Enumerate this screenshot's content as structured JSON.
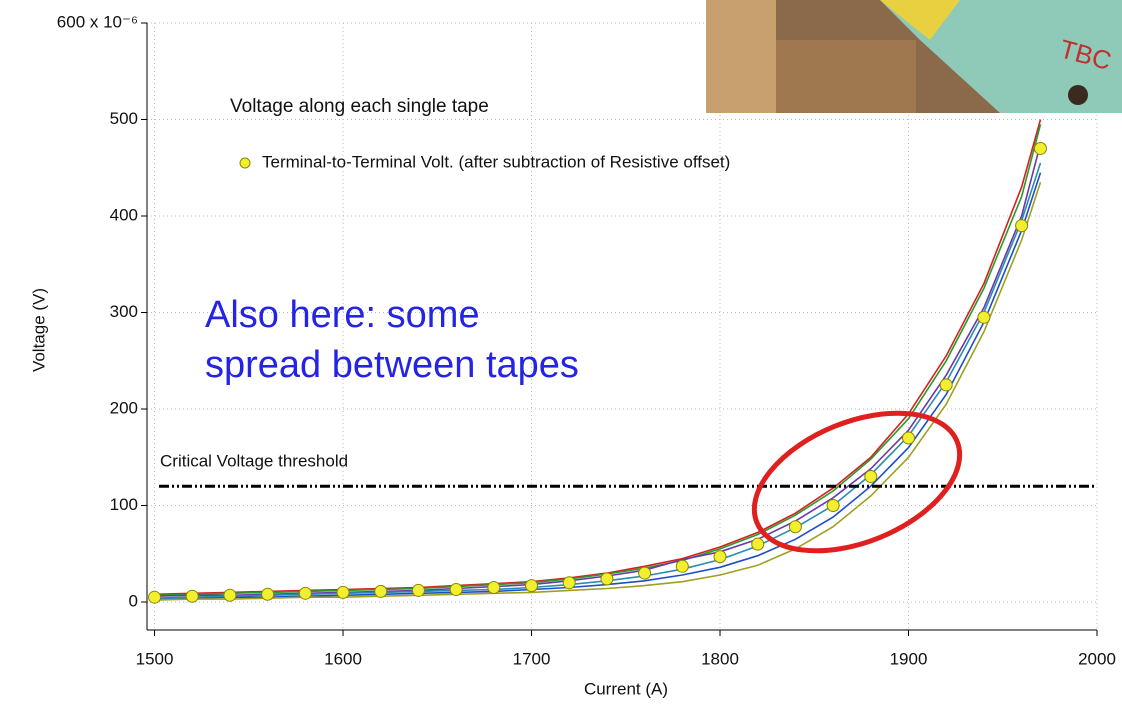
{
  "chart_data": {
    "type": "line",
    "x_label": "Current (A)",
    "y_label": "Voltage (V)",
    "legend_title": "Voltage along each single tape",
    "annotation_lines": [
      "Also here: some",
      "spread between tapes"
    ],
    "threshold": {
      "value": 120,
      "label": "Critical Voltage threshold"
    },
    "xlim": [
      1496,
      2000
    ],
    "xticks": [
      1500,
      1600,
      1700,
      1800,
      1900,
      2000
    ],
    "ylim": [
      -29,
      600
    ],
    "yticks": [
      0,
      100,
      200,
      300,
      400,
      500,
      {
        "value": 600,
        "label": "600 x 10⁻⁶"
      }
    ],
    "grid": true,
    "x": [
      1500,
      1520,
      1540,
      1560,
      1580,
      1600,
      1620,
      1640,
      1660,
      1680,
      1700,
      1720,
      1740,
      1760,
      1780,
      1800,
      1820,
      1840,
      1860,
      1880,
      1900,
      1920,
      1940,
      1960,
      1970
    ],
    "series": [
      {
        "color": "#d62020",
        "values": [
          8,
          9,
          10,
          11,
          12,
          13,
          14,
          15,
          17,
          19,
          21,
          25,
          30,
          37,
          45,
          57,
          72,
          92,
          118,
          150,
          195,
          255,
          330,
          430,
          500
        ]
      },
      {
        "color": "#2a9a2a",
        "values": [
          7,
          8,
          9,
          10,
          11,
          12,
          13,
          14,
          16,
          18,
          20,
          24,
          29,
          35,
          43,
          55,
          70,
          90,
          115,
          148,
          190,
          250,
          325,
          420,
          495
        ]
      },
      {
        "color": "#6a3aa8",
        "values": [
          6,
          7,
          7,
          8,
          9,
          10,
          11,
          12,
          14,
          16,
          18,
          22,
          27,
          33,
          44,
          52,
          65,
          84,
          108,
          138,
          178,
          235,
          305,
          400,
          475
        ]
      },
      {
        "color": "#1c4fc4",
        "values": [
          3,
          4,
          5,
          5,
          6,
          7,
          8,
          9,
          10,
          11,
          13,
          15,
          18,
          22,
          28,
          36,
          48,
          65,
          88,
          120,
          160,
          215,
          290,
          385,
          445
        ]
      },
      {
        "color": "#2a8cb0",
        "values": [
          4,
          5,
          6,
          7,
          8,
          9,
          10,
          11,
          12,
          13,
          15,
          18,
          22,
          27,
          34,
          44,
          58,
          77,
          100,
          132,
          172,
          228,
          300,
          395,
          455
        ]
      },
      {
        "color": "#a0a020",
        "values": [
          2,
          3,
          3,
          4,
          5,
          5,
          6,
          7,
          8,
          9,
          10,
          12,
          14,
          17,
          21,
          28,
          38,
          55,
          78,
          110,
          150,
          205,
          280,
          375,
          435
        ]
      },
      {
        "name": "Terminal-to-Terminal Volt. (after subtraction of Resistive offset)",
        "color": "#f2ee30",
        "marker": "circle",
        "values": [
          5,
          6,
          7,
          8,
          9,
          10,
          11,
          12,
          13,
          15,
          17,
          20,
          24,
          30,
          37,
          47,
          60,
          78,
          100,
          130,
          170,
          225,
          295,
          390,
          470
        ]
      }
    ]
  }
}
